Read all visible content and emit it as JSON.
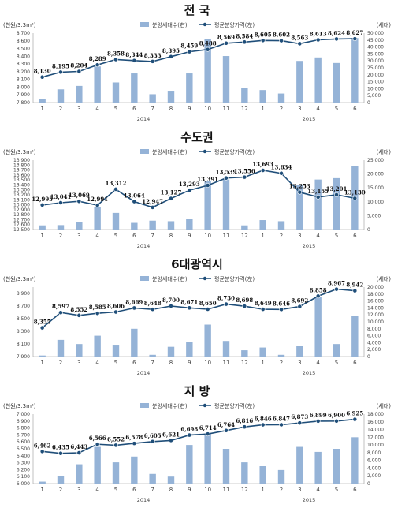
{
  "legend": {
    "bar_label": "분양세대수(右)",
    "line_label": "평균분양가격(左)"
  },
  "colors": {
    "bar": "#95b3d7",
    "line": "#1f4e79",
    "marker": "#1f4e79",
    "axis": "#999999"
  },
  "chart_data": [
    {
      "type": "bar+line",
      "title": "전  국",
      "left_unit": "(천원/3.3m²)",
      "right_unit": "(세대)",
      "categories": [
        "1",
        "2",
        "3",
        "4",
        "5",
        "6",
        "7",
        "8",
        "9",
        "10",
        "11",
        "12",
        "1",
        "2",
        "3",
        "4",
        "5",
        "6"
      ],
      "year_labels": [
        {
          "label": "2014",
          "index": 5.5
        },
        {
          "label": "2015",
          "index": 14.5
        }
      ],
      "left_axis": {
        "min": 7800,
        "max": 8700,
        "step": 100
      },
      "right_axis": {
        "min": 0,
        "max": 50000,
        "step": 5000
      },
      "series": [
        {
          "name": "평균분양가격(左)",
          "kind": "line",
          "axis": "left",
          "values": [
            8130,
            8195,
            8204,
            8289,
            8358,
            8344,
            8333,
            8395,
            8459,
            8488,
            8569,
            8584,
            8605,
            8602,
            8563,
            8613,
            8624,
            8627
          ],
          "labels": [
            "8,130",
            "8,195",
            "8,204",
            "8,289",
            "8,358",
            "8,344",
            "8,333",
            "8,395",
            "8,459",
            "8,488",
            "8,569",
            "8,584",
            "8,605",
            "8,602",
            "8,563",
            "8,613",
            "8,624",
            "8,627"
          ]
        },
        {
          "name": "분양세대수(右)",
          "kind": "bar",
          "axis": "right",
          "values": [
            2500,
            9500,
            12000,
            26000,
            14500,
            21000,
            6000,
            8500,
            21000,
            45500,
            33500,
            10500,
            9000,
            6500,
            30000,
            32500,
            28500,
            46500
          ]
        }
      ]
    },
    {
      "type": "bar+line",
      "title": "수도권",
      "left_unit": "(천원/3.3m²)",
      "right_unit": "(세대)",
      "categories": [
        "1",
        "2",
        "3",
        "4",
        "5",
        "6",
        "7",
        "8",
        "9",
        "10",
        "11",
        "12",
        "1",
        "2",
        "3",
        "4",
        "5",
        "6"
      ],
      "year_labels": [
        {
          "label": "2014",
          "index": 5.5
        },
        {
          "label": "2015",
          "index": 14.5
        }
      ],
      "left_axis": {
        "min": 12500,
        "max": 13900,
        "step": 100
      },
      "right_axis": {
        "min": 0,
        "max": 25000,
        "step": 5000
      },
      "series": [
        {
          "name": "평균분양가격(左)",
          "kind": "line",
          "axis": "left",
          "values": [
            12995,
            13041,
            13069,
            12991,
            13312,
            13064,
            12947,
            13127,
            13293,
            13391,
            13539,
            13556,
            13693,
            13634,
            13253,
            13155,
            13201,
            13130
          ],
          "labels": [
            "12,995",
            "13,041",
            "13,069",
            "12,991",
            "13,312",
            "13,064",
            "12,947",
            "13,127",
            "13,293",
            "13,391",
            "13,539",
            "13,556",
            "13,693",
            "13,634",
            "13,253",
            "13,155",
            "13,201",
            "13,130"
          ]
        },
        {
          "name": "분양세대수(右)",
          "kind": "bar",
          "axis": "right",
          "values": [
            1500,
            1600,
            2700,
            8000,
            6000,
            2400,
            3200,
            3000,
            3800,
            17500,
            18000,
            1500,
            3400,
            3000,
            16000,
            18000,
            18500,
            23000
          ]
        }
      ]
    },
    {
      "type": "bar+line",
      "title": "6대광역시",
      "left_unit": "(천원/3.3m²)",
      "right_unit": "(세대)",
      "categories": [
        "1",
        "2",
        "3",
        "4",
        "5",
        "6",
        "7",
        "8",
        "9",
        "10",
        "11",
        "12",
        "1",
        "2",
        "3",
        "4",
        "5",
        "6"
      ],
      "year_labels": [
        {
          "label": "2014",
          "index": 5.5
        },
        {
          "label": "2015",
          "index": 14.5
        }
      ],
      "left_axis": {
        "min": 7900,
        "max": 9000,
        "step": 200
      },
      "right_axis": {
        "min": 0,
        "max": 20000,
        "step": 2000
      },
      "series": [
        {
          "name": "평균분양가격(左)",
          "kind": "line",
          "axis": "left",
          "values": [
            8355,
            8597,
            8552,
            8585,
            8606,
            8669,
            8648,
            8700,
            8671,
            8650,
            8730,
            8698,
            8649,
            8646,
            8692,
            8858,
            8967,
            8942
          ],
          "labels": [
            "8,355",
            "8,597",
            "8,552",
            "8,585",
            "8,606",
            "8,669",
            "8,648",
            "8,700",
            "8,671",
            "8,650",
            "8,730",
            "8,698",
            "8,649",
            "8,646",
            "8,692",
            "8,858",
            "8,967",
            "8,942"
          ]
        },
        {
          "name": "분양세대수(右)",
          "kind": "bar",
          "axis": "right",
          "values": [
            300,
            4800,
            3600,
            6000,
            3400,
            8000,
            500,
            2800,
            4200,
            9200,
            4500,
            1800,
            2600,
            500,
            3000,
            17200,
            3600,
            11600
          ]
        }
      ]
    },
    {
      "type": "bar+line",
      "title": "지  방",
      "left_unit": "(천원/3.3m²)",
      "right_unit": "(세대)",
      "categories": [
        "1",
        "2",
        "3",
        "4",
        "5",
        "6",
        "7",
        "8",
        "9",
        "10",
        "11",
        "12",
        "1",
        "2",
        "3",
        "4",
        "5",
        "6"
      ],
      "year_labels": [
        {
          "label": "2014",
          "index": 5.5
        },
        {
          "label": "2015",
          "index": 14.5
        }
      ],
      "left_axis": {
        "min": 6000,
        "max": 7000,
        "step": 100
      },
      "right_axis": {
        "min": 0,
        "max": 18000,
        "step": 2000
      },
      "series": [
        {
          "name": "평균분양가격(左)",
          "kind": "line",
          "axis": "left",
          "values": [
            6462,
            6435,
            6443,
            6566,
            6552,
            6578,
            6605,
            6621,
            6698,
            6714,
            6764,
            6816,
            6846,
            6847,
            6873,
            6899,
            6900,
            6925
          ],
          "labels": [
            "6,462",
            "6,435",
            "6,443",
            "6,566",
            "6,552",
            "6,578",
            "6,605",
            "6,621",
            "6,698",
            "6,714",
            "6,764",
            "6,816",
            "6,846",
            "6,847",
            "6,873",
            "6,899",
            "6,900",
            "6,925"
          ]
        },
        {
          "name": "분양세대수(右)",
          "kind": "bar",
          "axis": "right",
          "values": [
            500,
            2000,
            5000,
            9500,
            5500,
            7000,
            2500,
            1800,
            10000,
            13000,
            9000,
            5500,
            4500,
            3500,
            9500,
            8200,
            9000,
            12000
          ]
        }
      ]
    }
  ]
}
